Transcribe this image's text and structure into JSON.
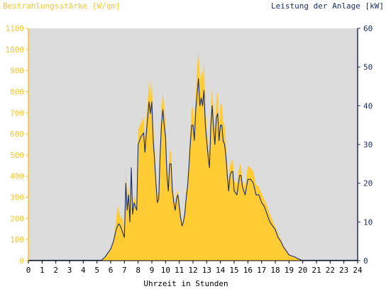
{
  "chart_data": {
    "type": "area",
    "title": "",
    "y_left_label": "Bestrahlungsstärke [W/qm]",
    "y_right_label": "Leistung der Anlage [kW]",
    "xlabel": "Uhrzeit in Stunden",
    "xlim": [
      0,
      24
    ],
    "ylim_left": [
      0,
      1100
    ],
    "ylim_right": [
      0,
      60
    ],
    "x_ticks": [
      "0",
      "1",
      "2",
      "3",
      "4",
      "5",
      "6",
      "7",
      "8",
      "9",
      "10",
      "11",
      "12",
      "13",
      "14",
      "15",
      "16",
      "17",
      "18",
      "19",
      "20",
      "21",
      "22",
      "23",
      "24"
    ],
    "y_left_ticks": [
      "0",
      "100",
      "200",
      "300",
      "400",
      "500",
      "600",
      "700",
      "800",
      "900",
      "1000",
      "1100"
    ],
    "y_right_ticks": [
      "0",
      "10",
      "20",
      "30",
      "40",
      "50",
      "60"
    ],
    "grid": false,
    "colors": {
      "plot_background": "#dcdcdc",
      "irradiance_fill": "#ffcc33",
      "power_line": "#1a2d6b",
      "left_axis": "#f5c42c",
      "right_axis": "#1a2d6b"
    },
    "series": [
      {
        "axis": "left",
        "kind": "area",
        "x": [
          5.3,
          5.6,
          6.0,
          6.2,
          6.4,
          6.5,
          6.6,
          6.7,
          6.8,
          6.9,
          7.0,
          7.1,
          7.2,
          7.3,
          7.4,
          7.5,
          7.6,
          7.7,
          7.8,
          7.9,
          8.0,
          8.2,
          8.4,
          8.5,
          8.6,
          8.7,
          8.8,
          8.9,
          9.0,
          9.1,
          9.2,
          9.3,
          9.4,
          9.5,
          9.6,
          9.7,
          9.8,
          9.9,
          10.0,
          10.1,
          10.2,
          10.3,
          10.4,
          10.5,
          10.6,
          10.7,
          10.8,
          10.9,
          11.0,
          11.1,
          11.2,
          11.3,
          11.4,
          11.5,
          11.6,
          11.7,
          11.8,
          11.9,
          12.0,
          12.1,
          12.2,
          12.3,
          12.4,
          12.5,
          12.6,
          12.7,
          12.8,
          12.9,
          13.0,
          13.1,
          13.2,
          13.3,
          13.4,
          13.5,
          13.6,
          13.7,
          13.8,
          13.9,
          14.0,
          14.1,
          14.2,
          14.3,
          14.4,
          14.5,
          14.6,
          14.7,
          14.8,
          14.9,
          15.0,
          15.2,
          15.4,
          15.5,
          15.6,
          15.8,
          16.0,
          16.2,
          16.4,
          16.6,
          16.8,
          17.0,
          17.2,
          17.4,
          17.6,
          17.8,
          18.0,
          18.2,
          18.4,
          18.6,
          18.8,
          19.0,
          19.2,
          19.4,
          19.6,
          19.8,
          20.0
        ],
        "values": [
          0,
          20,
          50,
          100,
          190,
          260,
          240,
          200,
          210,
          180,
          150,
          440,
          280,
          360,
          200,
          460,
          240,
          310,
          290,
          250,
          620,
          650,
          680,
          580,
          690,
          760,
          850,
          780,
          860,
          640,
          540,
          420,
          300,
          330,
          550,
          720,
          800,
          720,
          660,
          450,
          380,
          520,
          520,
          360,
          300,
          270,
          320,
          330,
          280,
          230,
          180,
          200,
          250,
          320,
          380,
          480,
          600,
          720,
          730,
          640,
          800,
          920,
          1000,
          840,
          900,
          870,
          940,
          720,
          640,
          560,
          500,
          730,
          820,
          700,
          620,
          760,
          800,
          650,
          740,
          740,
          660,
          640,
          560,
          450,
          380,
          450,
          470,
          480,
          380,
          360,
          460,
          450,
          380,
          350,
          450,
          440,
          420,
          360,
          350,
          320,
          290,
          260,
          220,
          190,
          160,
          130,
          100,
          70,
          50,
          30,
          20,
          15,
          10,
          5,
          0
        ]
      },
      {
        "axis": "right",
        "kind": "line",
        "x": [
          5.3,
          5.6,
          6.0,
          6.2,
          6.4,
          6.5,
          6.6,
          6.7,
          6.8,
          6.9,
          7.0,
          7.1,
          7.2,
          7.3,
          7.4,
          7.5,
          7.6,
          7.7,
          7.8,
          7.9,
          8.0,
          8.2,
          8.4,
          8.5,
          8.6,
          8.7,
          8.8,
          8.9,
          9.0,
          9.1,
          9.2,
          9.3,
          9.4,
          9.5,
          9.6,
          9.7,
          9.8,
          9.9,
          10.0,
          10.1,
          10.2,
          10.3,
          10.4,
          10.5,
          10.6,
          10.7,
          10.8,
          10.9,
          11.0,
          11.1,
          11.2,
          11.3,
          11.4,
          11.5,
          11.6,
          11.7,
          11.8,
          11.9,
          12.0,
          12.1,
          12.2,
          12.3,
          12.4,
          12.5,
          12.6,
          12.7,
          12.8,
          12.9,
          13.0,
          13.1,
          13.2,
          13.3,
          13.4,
          13.5,
          13.6,
          13.7,
          13.8,
          13.9,
          14.0,
          14.1,
          14.2,
          14.3,
          14.4,
          14.5,
          14.6,
          14.7,
          14.8,
          14.9,
          15.0,
          15.2,
          15.4,
          15.5,
          15.6,
          15.8,
          16.0,
          16.2,
          16.4,
          16.6,
          16.8,
          17.0,
          17.2,
          17.4,
          17.6,
          17.8,
          18.0,
          18.2,
          18.4,
          18.6,
          18.8,
          19.0,
          19.2,
          19.4,
          19.6,
          19.8,
          20.0
        ],
        "values": [
          0,
          1,
          3,
          5,
          8,
          9,
          9.5,
          9,
          8,
          7,
          6,
          20,
          13,
          17,
          10,
          24,
          12,
          15,
          14,
          13,
          30,
          32,
          33,
          28,
          33,
          37,
          41,
          38,
          41,
          31,
          26,
          20,
          15,
          16,
          27,
          35,
          39,
          35,
          32,
          22,
          18,
          25,
          25,
          18,
          15,
          13,
          16,
          17,
          14,
          11,
          9,
          10,
          12,
          16,
          19,
          24,
          30,
          35,
          35,
          31,
          39,
          43,
          47,
          40,
          42,
          40,
          44,
          35,
          31,
          27,
          24,
          35,
          40,
          34,
          30,
          37,
          38,
          31,
          35,
          35,
          31,
          30,
          27,
          22,
          18,
          22,
          23,
          23,
          18,
          17,
          22,
          22,
          19,
          17,
          21,
          21,
          20,
          17,
          17,
          15,
          14,
          12,
          10,
          9,
          8,
          6,
          5,
          3.5,
          2.5,
          1.5,
          1.2,
          1,
          0.6,
          0.3,
          0
        ]
      }
    ]
  }
}
